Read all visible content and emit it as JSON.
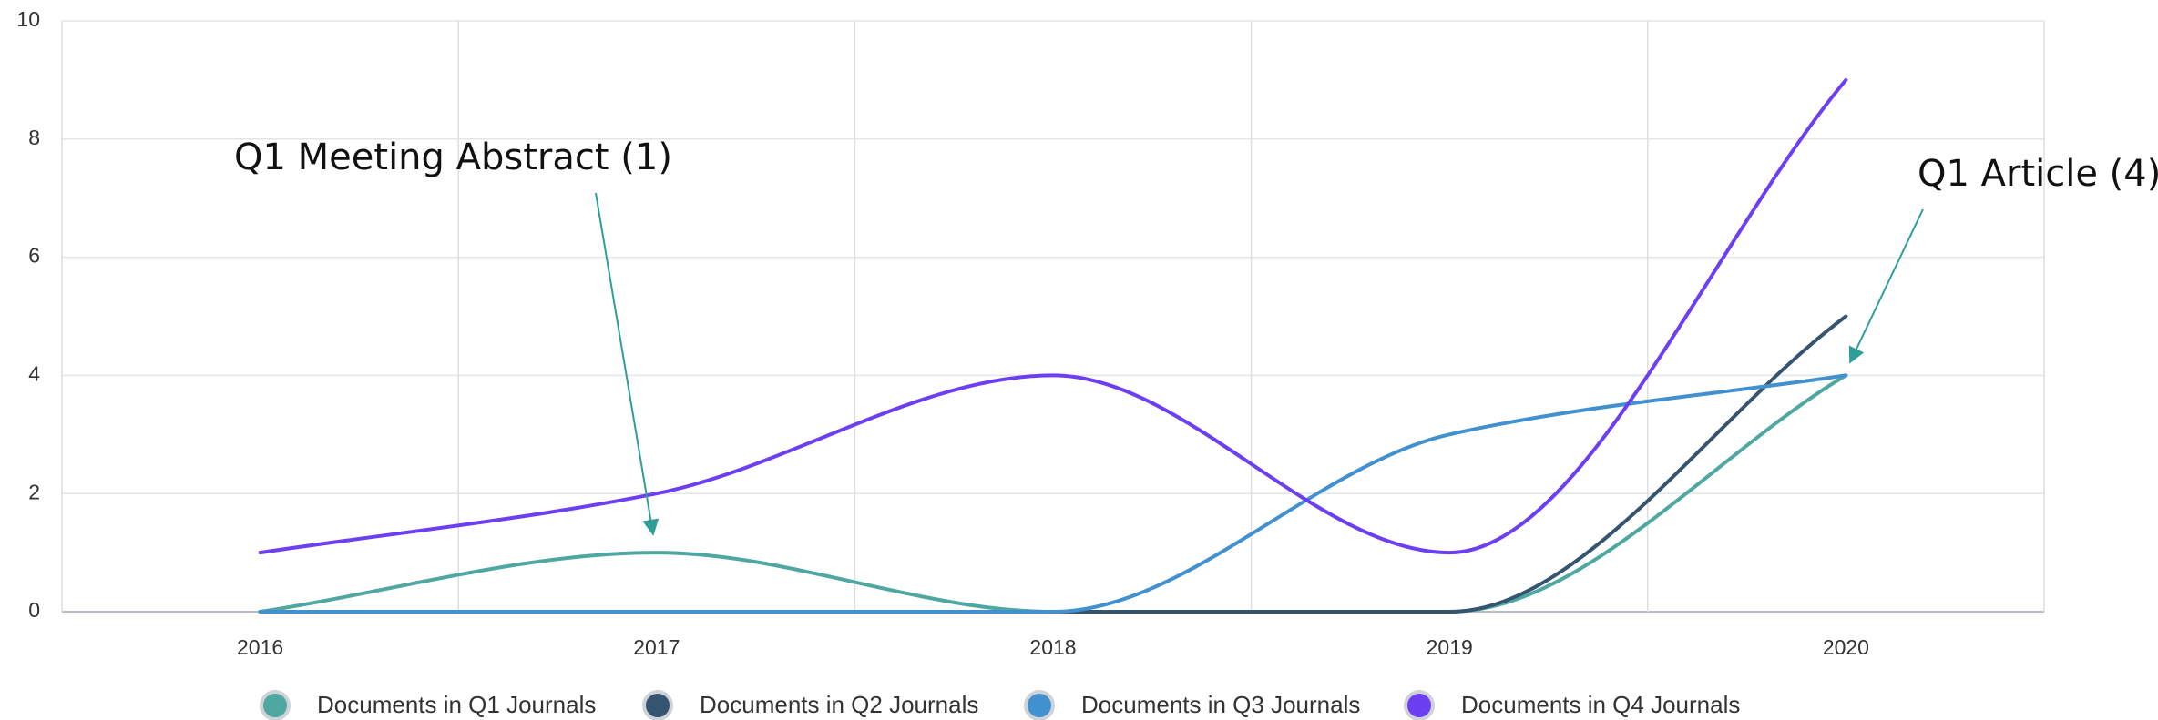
{
  "chart_data": {
    "type": "line",
    "categories": [
      "2016",
      "2017",
      "2018",
      "2019",
      "2020"
    ],
    "series": [
      {
        "name": "Documents in Q1 Journals",
        "color": "#4ea7a0",
        "values": [
          0,
          1,
          0,
          0,
          4
        ]
      },
      {
        "name": "Documents in Q2 Journals",
        "color": "#35546f",
        "values": [
          0,
          0,
          0,
          0,
          5
        ]
      },
      {
        "name": "Documents in Q3 Journals",
        "color": "#4190cf",
        "values": [
          0,
          0,
          0,
          3,
          4
        ]
      },
      {
        "name": "Documents in Q4 Journals",
        "color": "#6c3ff2",
        "values": [
          1,
          2,
          4,
          1,
          9
        ]
      }
    ],
    "ylim": [
      0,
      10
    ],
    "yticks": [
      0,
      2,
      4,
      6,
      8,
      10
    ],
    "grid": true,
    "legend": "bottom",
    "annotations": [
      {
        "text": "Q1 Meeting Abstract (1)"
      },
      {
        "text": "Q1 Article (4)"
      }
    ]
  }
}
